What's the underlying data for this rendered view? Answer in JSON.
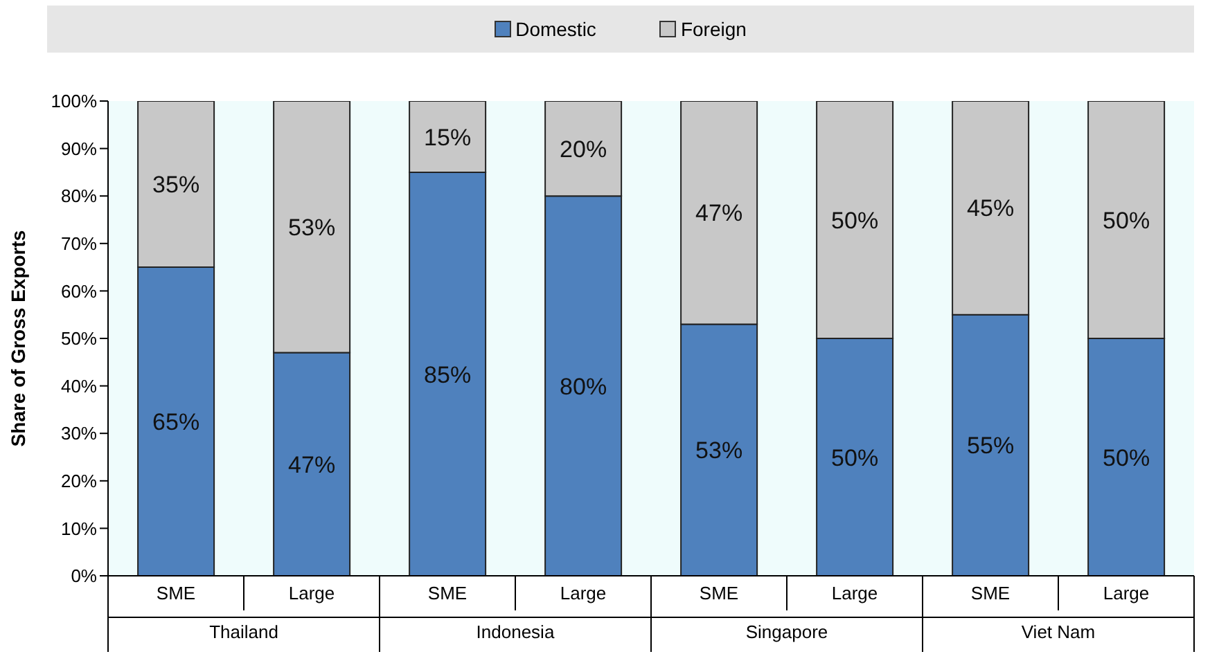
{
  "chart_data": {
    "type": "bar",
    "stacked": true,
    "categories": [
      "SME",
      "Large",
      "SME",
      "Large",
      "SME",
      "Large",
      "SME",
      "Large"
    ],
    "series": [
      {
        "name": "Domestic",
        "color": "#4f81bd",
        "values": [
          65,
          47,
          85,
          80,
          53,
          50,
          55,
          50
        ],
        "value_labels": [
          "65%",
          "47%",
          "85%",
          "80%",
          "53%",
          "50%",
          "55%",
          "50%"
        ]
      },
      {
        "name": "Foreign",
        "color": "#c8c8c8",
        "values": [
          35,
          53,
          15,
          20,
          47,
          50,
          45,
          50
        ],
        "value_labels": [
          "35%",
          "53%",
          "15%",
          "20%",
          "47%",
          "50%",
          "45%",
          "50%"
        ]
      }
    ],
    "ylim": [
      0,
      100
    ],
    "yticks": [
      {
        "value": 0,
        "label": "0%"
      },
      {
        "value": 10,
        "label": "10%"
      },
      {
        "value": 20,
        "label": "20%"
      },
      {
        "value": 30,
        "label": "30%"
      },
      {
        "value": 40,
        "label": "40%"
      },
      {
        "value": 50,
        "label": "50%"
      },
      {
        "value": 60,
        "label": "60%"
      },
      {
        "value": 70,
        "label": "70%"
      },
      {
        "value": 80,
        "label": "80%"
      },
      {
        "value": 90,
        "label": "90%"
      },
      {
        "value": 100,
        "label": "100%"
      }
    ],
    "ylabel": "Share of Gross Exports",
    "annotations": [
      "Thailand",
      "Indonesia",
      "Singapore",
      "Viet Nam"
    ],
    "legend": "top"
  }
}
